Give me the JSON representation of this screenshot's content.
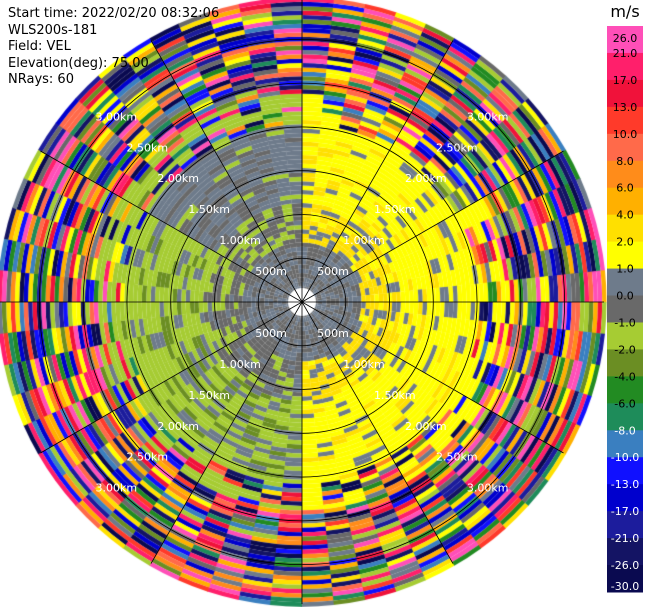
{
  "header": {
    "start_time": "Start time: 2022/02/20 08:32:06",
    "instrument": "WLS200s-181",
    "field": "Field: VEL",
    "elevation": "Elevation(deg): 75.00",
    "nrays": "NRays: 60"
  },
  "chart_data": {
    "type": "heatmap",
    "subtype": "polar-ppi",
    "field": "VEL",
    "units": "m/s",
    "n_rays": 60,
    "elevation_deg": 75.0,
    "range_rings_km": [
      0.5,
      1.0,
      1.5,
      2.0,
      2.5,
      3.0
    ],
    "range_ring_labels": [
      "500m",
      "1.00km",
      "1.50km",
      "2.00km",
      "2.50km",
      "3.00km"
    ],
    "max_range_km": 3.45,
    "colorbar": {
      "unit_label": "m/s",
      "ticks": [
        "26.0",
        "21.0",
        "17.0",
        "13.0",
        "10.0",
        "8.0",
        "6.0",
        "4.0",
        "2.0",
        "1.0",
        "0.0",
        "-1.0",
        "-2.0",
        "-4.0",
        "-6.0",
        "-8.0",
        "-10.0",
        "-13.0",
        "-17.0",
        "-21.0",
        "-26.0",
        "-30.0"
      ],
      "colors": [
        "#ff4fb8",
        "#ff1f6b",
        "#f0123a",
        "#ff3a2a",
        "#ff6a4a",
        "#ff8c1a",
        "#ffb000",
        "#ffe000",
        "#ffff00",
        "#6e7b8b",
        "#696969",
        "#a6cc33",
        "#6b8e23",
        "#228b22",
        "#1e8c5a",
        "#3a7fc0",
        "#1010ff",
        "#0000cd",
        "#1c1c9c",
        "#141464",
        "#0a0a50"
      ]
    },
    "grid": "on"
  }
}
